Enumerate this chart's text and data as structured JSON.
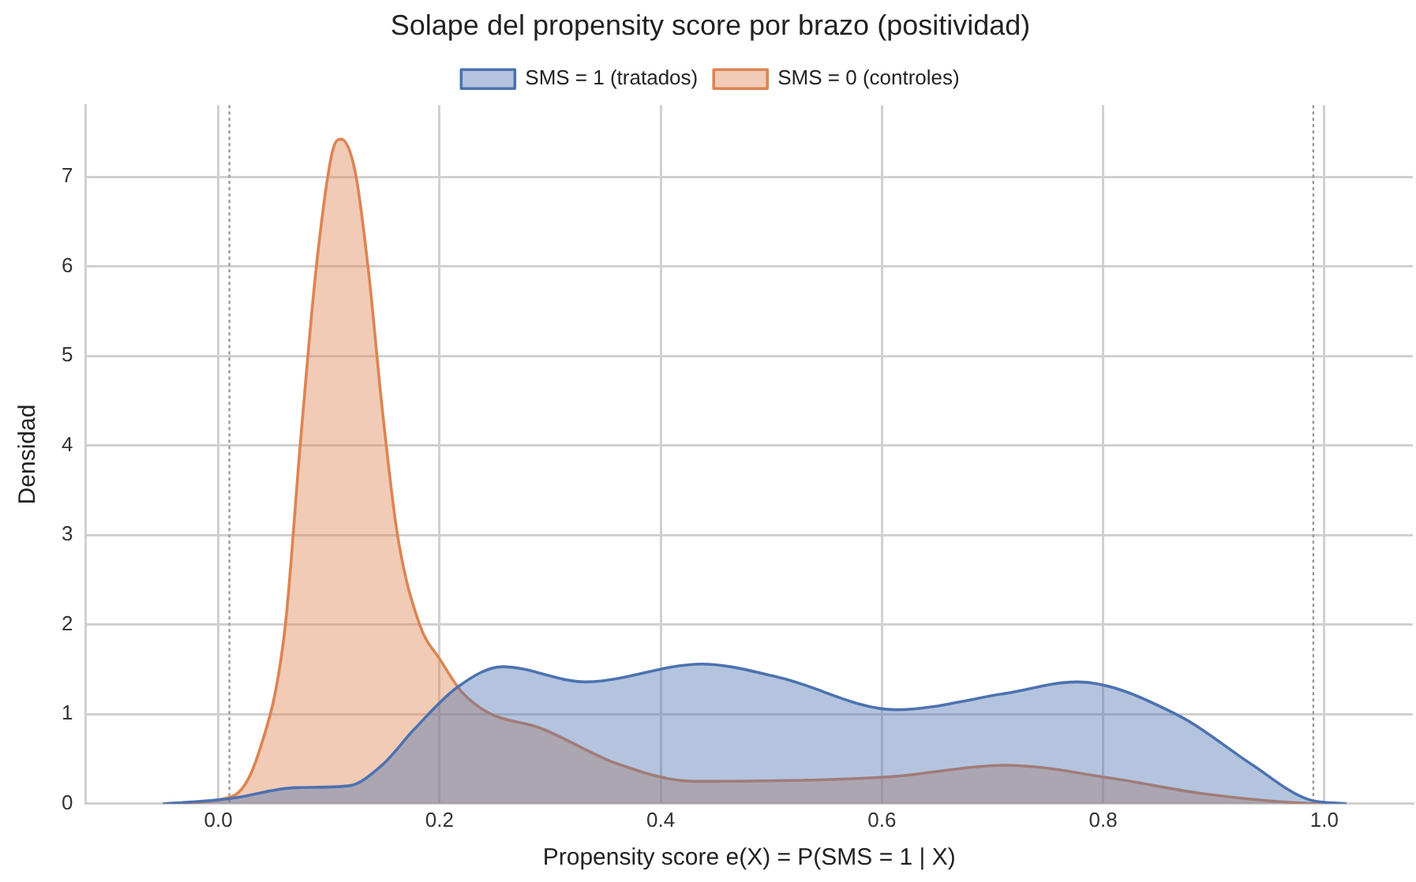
{
  "chart_data": {
    "type": "area",
    "title": "Solape del propensity score por brazo (positividad)",
    "xlabel": "Propensity score e(X) = P(SMS = 1 | X)",
    "ylabel": "Densidad",
    "series": [
      {
        "name": "SMS = 1 (tratados)",
        "color": "#4c72b0",
        "x": [
          -0.05,
          -0.036,
          0.012,
          0.07,
          0.118,
          0.148,
          0.177,
          0.216,
          0.257,
          0.332,
          0.437,
          0.507,
          0.612,
          0.711,
          0.776,
          0.869,
          0.933,
          0.985,
          1.02
        ],
        "values": [
          0,
          0.01,
          0.06,
          0.18,
          0.2,
          0.43,
          0.83,
          1.3,
          1.53,
          1.36,
          1.56,
          1.41,
          1.05,
          1.23,
          1.36,
          0.98,
          0.45,
          0.05,
          0
        ]
      },
      {
        "name": "SMS = 0 (controles)",
        "color": "#dd8452",
        "x": [
          -0.05,
          0.012,
          0.036,
          0.06,
          0.074,
          0.089,
          0.104,
          0.111,
          0.124,
          0.136,
          0.148,
          0.162,
          0.182,
          0.201,
          0.22,
          0.245,
          0.29,
          0.36,
          0.43,
          0.606,
          0.711,
          0.81,
          0.886,
          0.974,
          1.0
        ],
        "values": [
          0,
          0.08,
          0.55,
          1.93,
          4.0,
          6.04,
          7.32,
          7.42,
          7.04,
          5.92,
          4.43,
          3.0,
          2.0,
          1.6,
          1.25,
          1.01,
          0.85,
          0.45,
          0.25,
          0.3,
          0.43,
          0.28,
          0.12,
          0.01,
          0
        ]
      }
    ],
    "xlim": [
      -0.12,
      1.08
    ],
    "xticks": [
      {
        "value": 0,
        "label": "0.0"
      },
      {
        "value": 0.2,
        "label": "0.2"
      },
      {
        "value": 0.4,
        "label": "0.4"
      },
      {
        "value": 0.6,
        "label": "0.6"
      },
      {
        "value": 0.8,
        "label": "0.8"
      },
      {
        "value": 1,
        "label": "1.0"
      }
    ],
    "ylim": [
      0,
      7.8
    ],
    "yticks": [
      0,
      1,
      2,
      3,
      4,
      5,
      6,
      7
    ],
    "ref_lines": [
      {
        "axis": "x",
        "value": 0.01,
        "color": "#999999",
        "line_style": "dotted"
      },
      {
        "axis": "x",
        "value": 0.99,
        "color": "#999999",
        "line_style": "dotted"
      }
    ],
    "grid": true,
    "legend": "top",
    "marker": "none"
  }
}
